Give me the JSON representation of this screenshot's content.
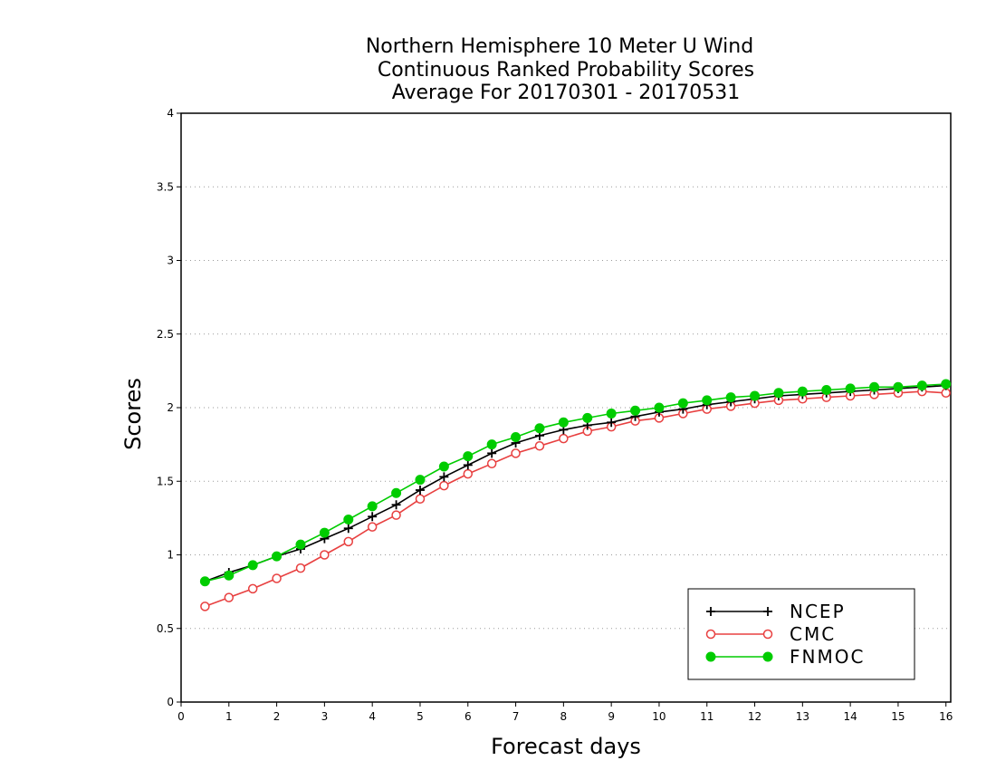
{
  "chart_data": {
    "type": "line",
    "title_lines": [
      "Northern Hemisphere 10 Meter U Wind",
      "Continuous Ranked Probability Scores",
      "Average For 20170301 - 20170531"
    ],
    "xlabel": "Forecast days",
    "ylabel": "Scores",
    "xlim": [
      0,
      16.1
    ],
    "ylim": [
      0,
      4
    ],
    "xticks": [
      0,
      1,
      2,
      3,
      4,
      5,
      6,
      7,
      8,
      9,
      10,
      11,
      12,
      13,
      14,
      15,
      16
    ],
    "xtick_labels": [
      "0",
      "1",
      "2",
      "3",
      "4",
      "5",
      "6",
      "7",
      "8",
      "9",
      "10",
      "11",
      "12",
      "13",
      "14",
      "15",
      "16"
    ],
    "yticks": [
      0,
      0.5,
      1,
      1.5,
      2,
      2.5,
      3,
      3.5,
      4
    ],
    "ytick_labels": [
      "0",
      "0.5",
      "1",
      "1.5",
      "2",
      "2.5",
      "3",
      "3.5",
      "4"
    ],
    "grid": "horizontal dotted",
    "legend_position": "bottom-right",
    "x": [
      0.5,
      1,
      1.5,
      2,
      2.5,
      3,
      3.5,
      4,
      4.5,
      5,
      5.5,
      6,
      6.5,
      7,
      7.5,
      8,
      8.5,
      9,
      9.5,
      10,
      10.5,
      11,
      11.5,
      12,
      12.5,
      13,
      13.5,
      14,
      14.5,
      15,
      15.5,
      16
    ],
    "series": [
      {
        "name": "NCEP",
        "color": "#000000",
        "marker": "plus",
        "values": [
          0.82,
          0.88,
          0.93,
          0.99,
          1.04,
          1.11,
          1.18,
          1.26,
          1.34,
          1.44,
          1.53,
          1.61,
          1.69,
          1.76,
          1.81,
          1.85,
          1.88,
          1.9,
          1.94,
          1.97,
          1.99,
          2.02,
          2.04,
          2.06,
          2.08,
          2.09,
          2.1,
          2.11,
          2.12,
          2.13,
          2.14,
          2.15
        ]
      },
      {
        "name": "CMC",
        "color": "#e84040",
        "marker": "open-circle",
        "values": [
          0.65,
          0.71,
          0.77,
          0.84,
          0.91,
          1.0,
          1.09,
          1.19,
          1.27,
          1.38,
          1.47,
          1.55,
          1.62,
          1.69,
          1.74,
          1.79,
          1.84,
          1.87,
          1.91,
          1.93,
          1.96,
          1.99,
          2.01,
          2.03,
          2.05,
          2.06,
          2.07,
          2.08,
          2.09,
          2.1,
          2.11,
          2.1
        ]
      },
      {
        "name": "FNMOC",
        "color": "#00cc00",
        "marker": "filled-circle",
        "values": [
          0.82,
          0.86,
          0.93,
          0.99,
          1.07,
          1.15,
          1.24,
          1.33,
          1.42,
          1.51,
          1.6,
          1.67,
          1.75,
          1.8,
          1.86,
          1.9,
          1.93,
          1.96,
          1.98,
          2.0,
          2.03,
          2.05,
          2.07,
          2.08,
          2.1,
          2.11,
          2.12,
          2.13,
          2.14,
          2.14,
          2.15,
          2.16
        ]
      }
    ]
  }
}
